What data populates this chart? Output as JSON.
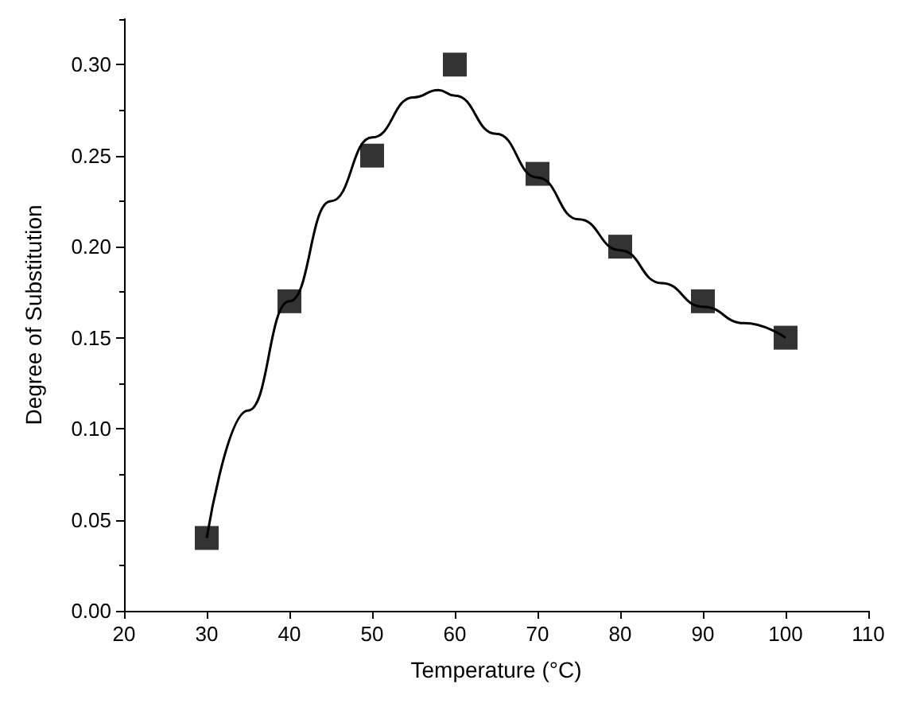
{
  "chart_data": {
    "type": "scatter",
    "xlabel": "Temperature (°C)",
    "ylabel": "Degree of Substitution",
    "xlim": [
      20,
      110
    ],
    "ylim": [
      0,
      0.325
    ],
    "xticks": [
      20,
      30,
      40,
      50,
      60,
      70,
      80,
      90,
      100,
      110
    ],
    "yticks": [
      {
        "value": 0,
        "label": "0.00"
      },
      {
        "value": 0.05,
        "label": "0.05"
      },
      {
        "value": 0.1,
        "label": "0.10"
      },
      {
        "value": 0.15,
        "label": "0.15"
      },
      {
        "value": 0.2,
        "label": "0.20"
      },
      {
        "value": 0.25,
        "label": "0.25"
      },
      {
        "value": 0.3,
        "label": "0.30"
      }
    ],
    "grid": false,
    "series": [
      {
        "marker": "square",
        "color": "#000000",
        "x": [
          30,
          40,
          50,
          60,
          70,
          80,
          90,
          100
        ],
        "values": [
          0.04,
          0.17,
          0.25,
          0.3,
          0.24,
          0.2,
          0.17,
          0.15
        ]
      },
      {
        "type": "line",
        "marker": "none",
        "color": "#000000",
        "x": [
          30,
          35,
          40,
          45,
          50,
          55,
          58,
          60,
          65,
          70,
          75,
          80,
          85,
          90,
          95,
          100
        ],
        "values": [
          0.04,
          0.11,
          0.17,
          0.225,
          0.26,
          0.282,
          0.286,
          0.283,
          0.262,
          0.238,
          0.215,
          0.198,
          0.18,
          0.167,
          0.158,
          0.15
        ]
      }
    ]
  }
}
